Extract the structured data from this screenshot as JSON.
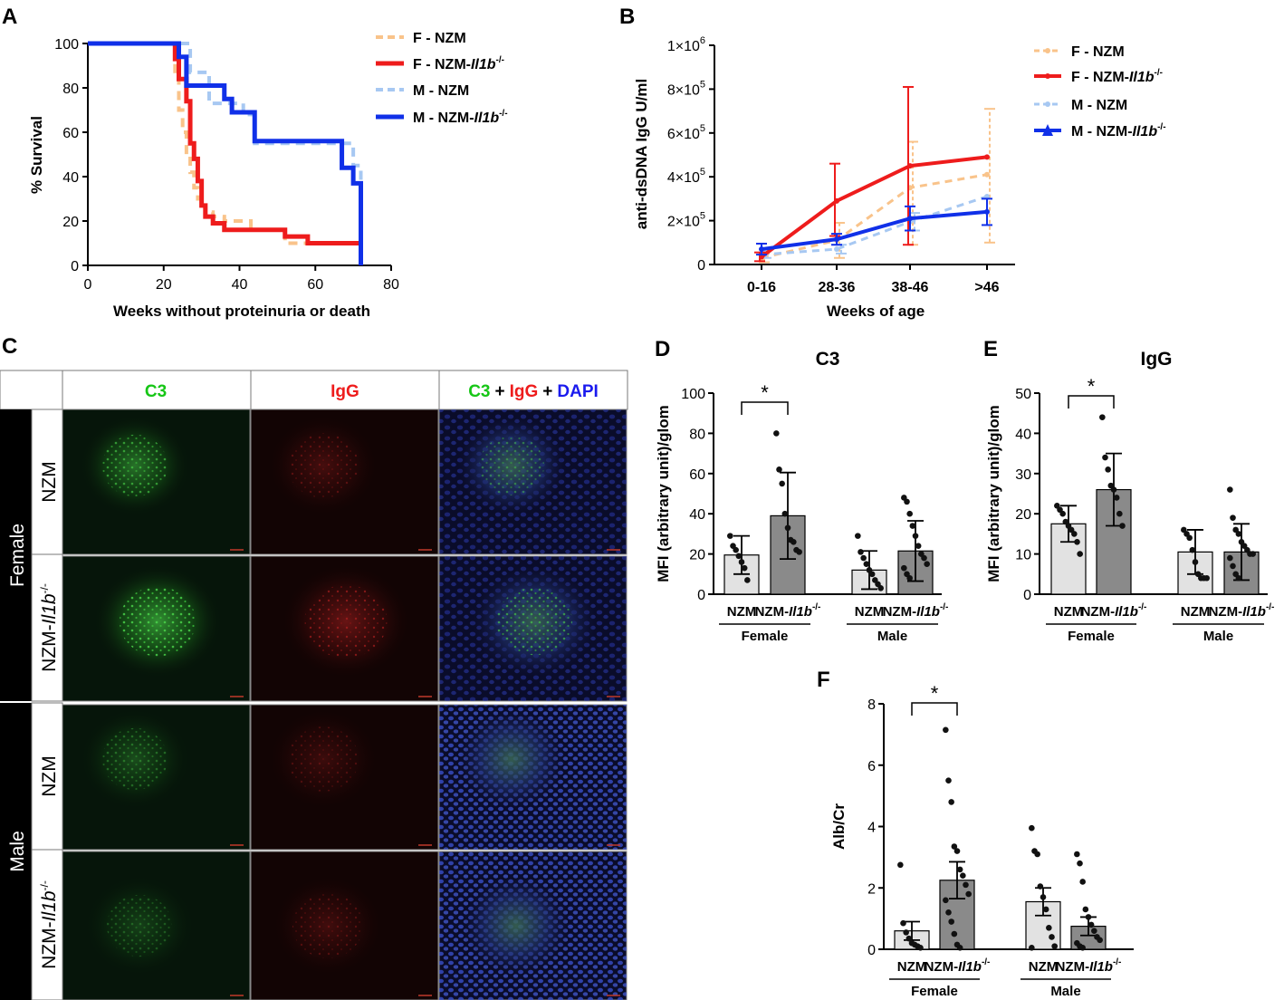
{
  "panel_letters": [
    "A",
    "B",
    "C",
    "D",
    "E",
    "F"
  ],
  "colors": {
    "f_nzm": "#f9c38a",
    "f_ko": "#ee1c1c",
    "m_nzm": "#a7c8f2",
    "m_ko": "#1030e8",
    "bar_nzm": "#e2e2e2",
    "bar_ko": "#8a8a8a",
    "c3_green": "#16c616",
    "igg_red": "#ee1c1c",
    "dapi_blue": "#1a1aee"
  },
  "superscript": "-/-",
  "italic_gene": "Il1b",
  "chart_data": [
    {
      "panel": "A",
      "type": "line",
      "step": true,
      "xlabel": "Weeks without proteinuria or death",
      "ylabel": "% Survival",
      "xlim": [
        0,
        80
      ],
      "ylim": [
        0,
        100
      ],
      "xticks": [
        0,
        20,
        40,
        60,
        80
      ],
      "yticks": [
        0,
        20,
        40,
        60,
        80,
        100
      ],
      "legend_position": "top-right",
      "series": [
        {
          "name": "F - NZM",
          "gene": "",
          "style": "dashed",
          "color_key": "f_nzm",
          "x": [
            0,
            23,
            24,
            25,
            26,
            27,
            28,
            29,
            30,
            31,
            33,
            36,
            43,
            52,
            72
          ],
          "y": [
            100,
            85,
            70,
            60,
            50,
            42,
            35,
            30,
            27,
            24,
            22,
            20,
            16,
            10,
            0
          ]
        },
        {
          "name": "F - NZM-",
          "gene": "Il1b",
          "style": "solid",
          "color_key": "f_ko",
          "x": [
            0,
            23,
            24,
            26,
            27,
            28,
            29,
            30,
            31,
            33,
            36,
            52,
            58,
            72
          ],
          "y": [
            100,
            93,
            84,
            74,
            55,
            48,
            38,
            27,
            22,
            19,
            16,
            13,
            10,
            0
          ]
        },
        {
          "name": "M - NZM",
          "gene": "",
          "style": "dashed",
          "color_key": "m_nzm",
          "x": [
            0,
            27,
            32,
            41,
            44,
            70,
            72
          ],
          "y": [
            100,
            87,
            73,
            68,
            55,
            45,
            0
          ]
        },
        {
          "name": "M - NZM-",
          "gene": "Il1b",
          "style": "solid",
          "color_key": "m_ko",
          "x": [
            0,
            24,
            26,
            29,
            36,
            38,
            44,
            67,
            68,
            70,
            72
          ],
          "y": [
            100,
            94,
            81,
            81,
            75,
            69,
            56,
            44,
            44,
            37,
            0
          ]
        }
      ]
    },
    {
      "panel": "B",
      "type": "line",
      "xlabel": "Weeks of age",
      "ylabel": "anti-dsDNA IgG U/ml",
      "categories": [
        "0-16",
        "28-36",
        "38-46",
        ">46"
      ],
      "ylim": [
        0,
        1000000
      ],
      "ytick_values": [
        0,
        200000,
        400000,
        600000,
        800000,
        1000000
      ],
      "ytick_labels": [
        "0",
        "2×10",
        "4×10",
        "6×10",
        "8×10",
        "1×10"
      ],
      "ytick_exponents": [
        "",
        "5",
        "5",
        "5",
        "5",
        "6"
      ],
      "legend_position": "top-right",
      "series": [
        {
          "name": "F - NZM",
          "gene": "",
          "style": "dashed",
          "color_key": "f_nzm",
          "values": [
            30000,
            110000,
            350000,
            410000
          ],
          "err_low": [
            20000,
            80000,
            260000,
            310000
          ],
          "err_high": [
            20000,
            80000,
            210000,
            300000
          ]
        },
        {
          "name": "F - NZM-",
          "gene": "Il1b",
          "style": "solid",
          "color_key": "f_ko",
          "values": [
            35000,
            290000,
            450000,
            490000
          ],
          "err_low": [
            20000,
            160000,
            360000,
            0
          ],
          "err_high": [
            20000,
            170000,
            360000,
            0
          ]
        },
        {
          "name": "M - NZM",
          "gene": "",
          "style": "dashed",
          "color_key": "m_nzm",
          "values": [
            45000,
            70000,
            195000,
            310000
          ],
          "err_low": [
            15000,
            20000,
            40000,
            0
          ],
          "err_high": [
            15000,
            20000,
            40000,
            0
          ]
        },
        {
          "name": "M - NZM-",
          "gene": "Il1b",
          "style": "solid",
          "color_key": "m_ko",
          "values": [
            70000,
            115000,
            210000,
            240000
          ],
          "err_low": [
            25000,
            25000,
            55000,
            60000
          ],
          "err_high": [
            25000,
            25000,
            55000,
            60000
          ]
        }
      ]
    },
    {
      "panel": "D",
      "type": "bar",
      "title": "C3",
      "ylabel": "MFI (arbitrary unit)/glom",
      "ylim": [
        0,
        100
      ],
      "yticks": [
        0,
        20,
        40,
        60,
        80,
        100
      ],
      "categories": [
        "NZM",
        "NZM-"
      ],
      "gene_flags": [
        false,
        true
      ],
      "groups": [
        "Female",
        "Male"
      ],
      "significance": "*",
      "bars": [
        {
          "group": "Female",
          "label": "NZM",
          "ko": false,
          "mean": 19.5,
          "sd": 9.5,
          "points": [
            29,
            24,
            22,
            19,
            16,
            13,
            7
          ]
        },
        {
          "group": "Female",
          "label": "NZM-",
          "ko": true,
          "mean": 39,
          "sd": 21.5,
          "points": [
            80,
            62,
            55,
            40,
            33,
            27,
            26,
            22,
            21
          ]
        },
        {
          "group": "Male",
          "label": "NZM",
          "ko": false,
          "mean": 12,
          "sd": 9.5,
          "points": [
            29,
            21,
            18,
            15,
            12,
            10,
            7,
            5,
            3
          ]
        },
        {
          "group": "Male",
          "label": "NZM-",
          "ko": true,
          "mean": 21.5,
          "sd": 15,
          "points": [
            48,
            46,
            40,
            34,
            29,
            24,
            20,
            18,
            15,
            13,
            10,
            8
          ]
        }
      ]
    },
    {
      "panel": "E",
      "type": "bar",
      "title": "IgG",
      "ylabel": "MFI (arbitrary unit)/glom",
      "ylim": [
        0,
        50
      ],
      "yticks": [
        0,
        10,
        20,
        30,
        40,
        50
      ],
      "categories": [
        "NZM",
        "NZM-"
      ],
      "gene_flags": [
        false,
        true
      ],
      "groups": [
        "Female",
        "Male"
      ],
      "significance": "*",
      "bars": [
        {
          "group": "Female",
          "label": "NZM",
          "ko": false,
          "mean": 17.5,
          "sd": 4.5,
          "points": [
            22,
            21,
            20,
            18,
            17,
            16,
            15,
            13,
            10
          ]
        },
        {
          "group": "Female",
          "label": "NZM-",
          "ko": true,
          "mean": 26,
          "sd": 9,
          "points": [
            44,
            34,
            31,
            27,
            26,
            24,
            20,
            17
          ]
        },
        {
          "group": "Male",
          "label": "NZM",
          "ko": false,
          "mean": 10.5,
          "sd": 5.5,
          "points": [
            16,
            15,
            14,
            11,
            8,
            5,
            4,
            4,
            4
          ]
        },
        {
          "group": "Male",
          "label": "NZM-",
          "ko": true,
          "mean": 10.5,
          "sd": 7,
          "points": [
            26,
            19,
            16,
            15,
            13,
            12,
            11,
            10,
            10,
            9,
            7,
            5,
            4
          ]
        }
      ]
    },
    {
      "panel": "F",
      "type": "bar",
      "ylabel": "Alb/Cr",
      "ylim": [
        0,
        8
      ],
      "yticks": [
        0,
        2,
        4,
        6,
        8
      ],
      "categories": [
        "NZM",
        "NZM-"
      ],
      "gene_flags": [
        false,
        true
      ],
      "groups": [
        "Female",
        "Male"
      ],
      "significance": "*",
      "bars": [
        {
          "group": "Female",
          "label": "NZM",
          "ko": false,
          "mean": 0.6,
          "sem": 0.3,
          "points": [
            2.75,
            0.85,
            0.55,
            0.35,
            0.2,
            0.15,
            0.1,
            0.05
          ]
        },
        {
          "group": "Female",
          "label": "NZM-",
          "ko": true,
          "mean": 2.25,
          "sem": 0.6,
          "points": [
            7.15,
            5.5,
            4.8,
            3.35,
            3.2,
            2.6,
            2.4,
            2.1,
            1.8,
            1.6,
            1.2,
            0.9,
            0.5,
            0.15,
            0.05
          ]
        },
        {
          "group": "Male",
          "label": "NZM",
          "ko": false,
          "mean": 1.55,
          "sem": 0.45,
          "points": [
            3.95,
            3.2,
            3.1,
            2.05,
            1.7,
            1.3,
            0.7,
            0.4,
            0.1,
            0.05
          ]
        },
        {
          "group": "Male",
          "label": "NZM-",
          "ko": true,
          "mean": 0.75,
          "sem": 0.3,
          "points": [
            3.1,
            2.8,
            2.2,
            1.3,
            1.05,
            0.8,
            0.6,
            0.4,
            0.3,
            0.2,
            0.1,
            0.05
          ]
        }
      ]
    }
  ],
  "panel_c": {
    "column_headers": [
      "C3",
      "IgG"
    ],
    "merge_header": {
      "c3": "C3",
      "plus1": "+",
      "igg": "IgG",
      "plus2": "+",
      "dapi": "DAPI"
    },
    "sex_labels": [
      "Female",
      "Male"
    ],
    "row_labels": [
      "NZM",
      "NZM-",
      "NZM",
      "NZM-"
    ],
    "row_gene_flags": [
      false,
      true,
      false,
      true
    ]
  }
}
